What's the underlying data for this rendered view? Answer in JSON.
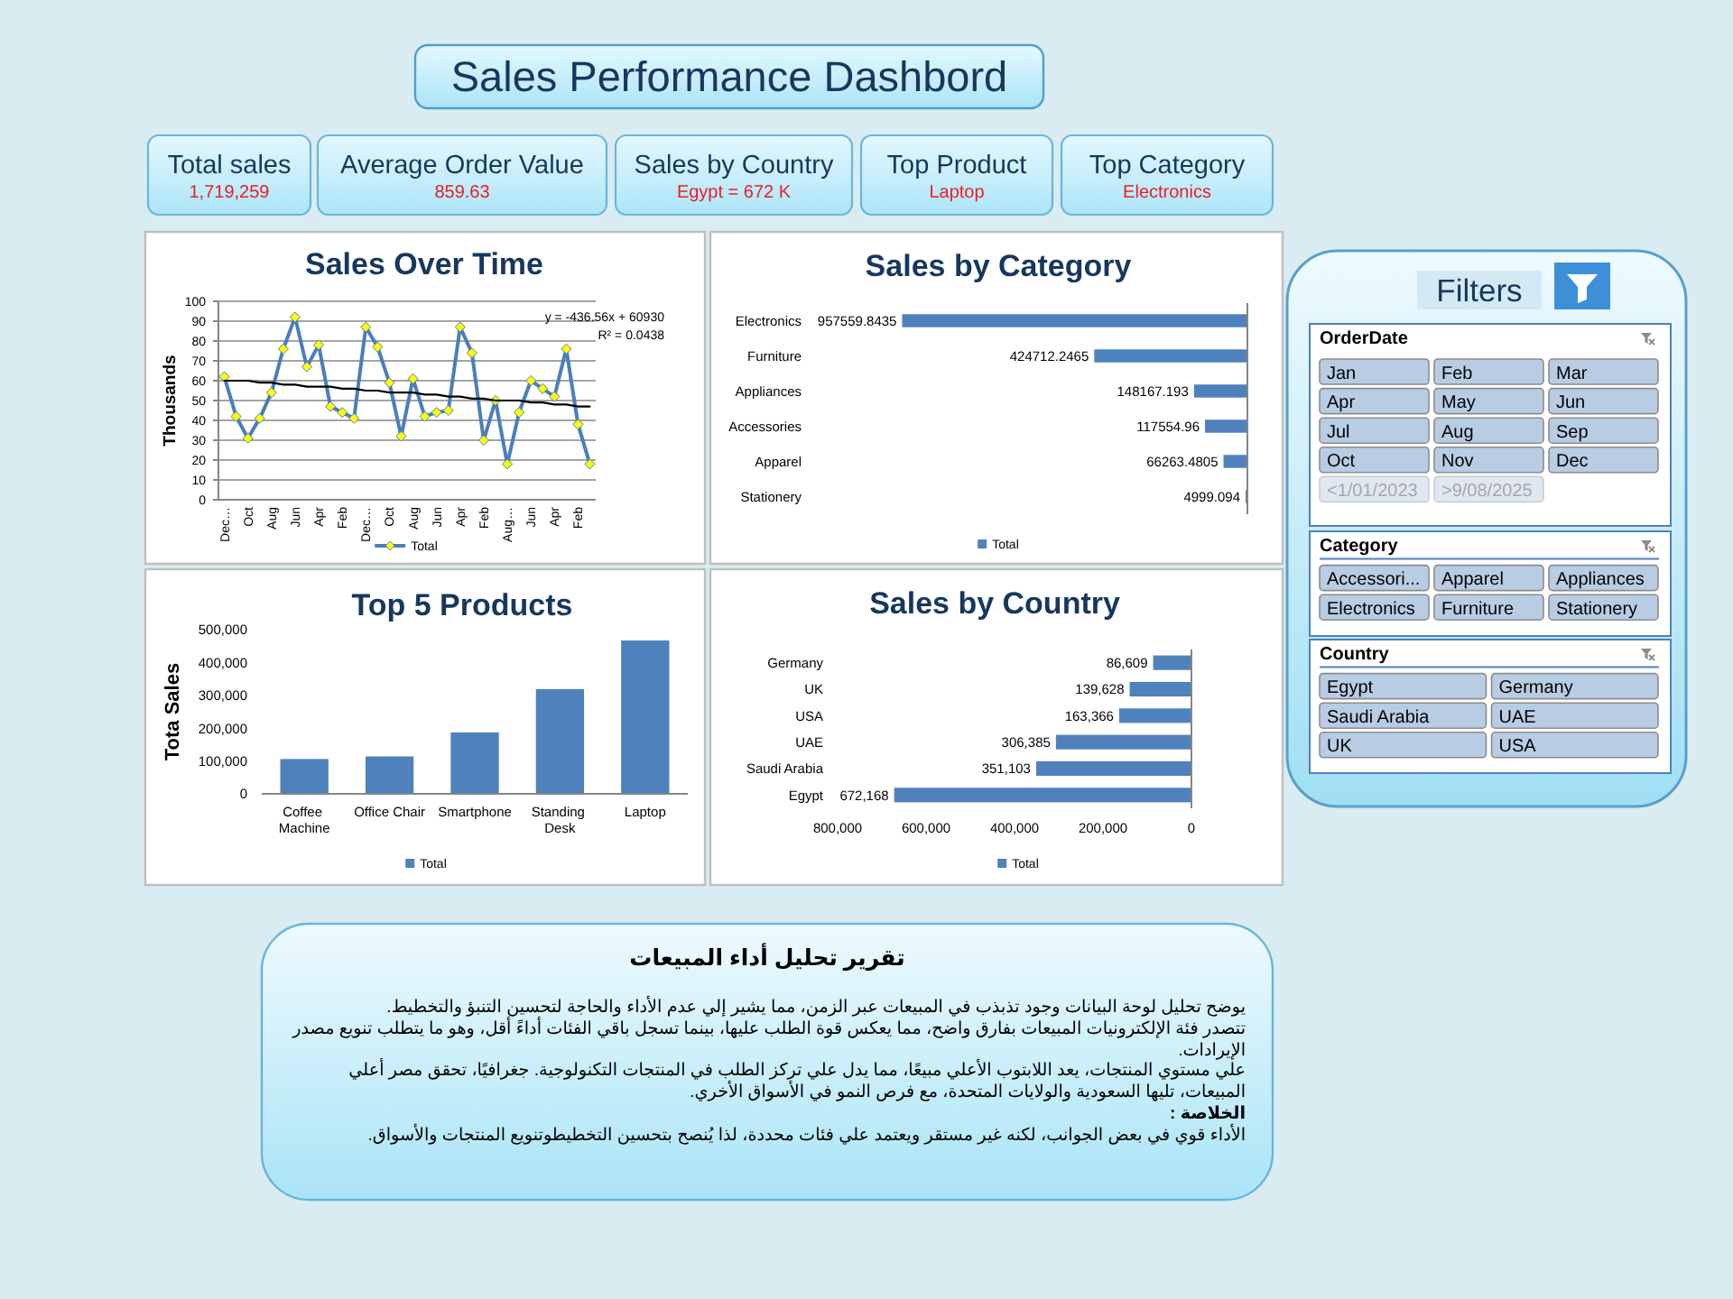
{
  "chart_data": [
    {
      "type": "other",
      "title": "Sales Performance Dashbord"
    },
    {
      "type": "other",
      "title": "Total sales",
      "annotations": [
        "1,719,259"
      ]
    },
    {
      "type": "other",
      "title": "Average Order Value",
      "annotations": [
        "859.63"
      ]
    },
    {
      "type": "other",
      "title": "Sales by Country",
      "annotations": [
        "Egypt = 672 K"
      ]
    },
    {
      "type": "other",
      "title": "Top Product",
      "annotations": [
        "Laptop"
      ]
    },
    {
      "type": "other",
      "title": "Top Category",
      "annotations": [
        "Electronics"
      ]
    },
    {
      "type": "line",
      "title": "Sales Over Time",
      "ylabel": "Thousands",
      "categories": [
        "Dec…",
        null,
        "Oct",
        null,
        "Aug",
        null,
        "Jun",
        null,
        "Apr",
        null,
        "Feb",
        null,
        "Dec…",
        null,
        "Oct",
        null,
        "Aug",
        null,
        "Jun",
        null,
        "Apr",
        null,
        "Feb",
        null,
        "Aug…",
        null,
        "Jun",
        null,
        "Apr",
        null,
        "Feb",
        null
      ],
      "series": [
        {
          "name": "Total",
          "color": "#4a7ebb",
          "values": [
            62,
            42,
            31,
            41,
            54,
            76,
            92,
            67,
            78,
            47,
            44,
            41,
            87,
            77,
            59,
            32,
            61,
            42,
            44,
            45,
            87,
            74,
            30,
            50,
            18,
            44,
            60,
            56,
            52,
            76,
            38,
            18
          ],
          "colors": [
            "#ffff00",
            "#ffff00",
            "#ffff00",
            "#ffff00",
            "#ffff00",
            "#ffff00",
            "#ffff00",
            "#ffff00",
            "#ffff00",
            "#ffff00",
            "#ffff00",
            "#ffff00",
            "#ffff00",
            "#ffff00",
            "#ffff00",
            "#ffff00",
            "#ffff00",
            "#ffff00",
            "#ffff00",
            "#ffff00",
            "#ffff00",
            "#ffff00",
            "#ffff00",
            "#ffff00",
            "#ffff00",
            "#ffff00",
            "#ffff00",
            "#ffff00",
            "#ffff00",
            "#ffff00",
            "#ffff00",
            "#ffff00"
          ]
        },
        {
          "type": "line",
          "color": "#000000",
          "values": [
            60,
            60,
            60,
            59,
            59,
            58,
            58,
            57,
            57,
            57,
            56,
            56,
            55,
            55,
            54,
            54,
            54,
            53,
            53,
            52,
            52,
            51,
            51,
            50,
            50,
            50,
            49,
            49,
            48,
            48,
            47,
            47
          ],
          "marker": "none"
        }
      ],
      "ylim": [
        0,
        100
      ],
      "yticks": [
        0,
        10,
        20,
        30,
        40,
        50,
        60,
        70,
        80,
        90,
        100
      ],
      "grid": "y",
      "legend": "bottom",
      "marker": "diamond",
      "annotations": [
        "y = -436.56x + 60930",
        "R² = 0.0438"
      ]
    },
    {
      "type": "bar",
      "orientation": "horizontal",
      "title": "Sales by Category",
      "categories": [
        "Electronics",
        "Furniture",
        "Appliances",
        "Accessories",
        "Apparel",
        "Stationery"
      ],
      "series": [
        {
          "name": "Total",
          "color": "#4f81bd",
          "values": [
            957559.8435,
            424712.2465,
            148167.193,
            117554.96,
            66263.4805,
            4999.094
          ]
        }
      ],
      "tick_labels": "y",
      "data_labels": true,
      "legend": "bottom"
    },
    {
      "type": "other",
      "title": "Filters"
    },
    {
      "type": "other",
      "title": "OrderDate",
      "categories": [
        "Jan",
        "Feb",
        "Mar",
        "Apr",
        "May",
        "Jun",
        "Jul",
        "Aug",
        "Sep",
        "Oct",
        "Nov",
        "Dec"
      ],
      "annotations": [
        "<1/01/2023",
        ">9/08/2025"
      ]
    },
    {
      "type": "other",
      "title": "Category",
      "categories": [
        "Accessori...",
        "Apparel",
        "Appliances",
        "Electronics",
        "Furniture",
        "Stationery"
      ]
    },
    {
      "type": "other",
      "title": "Country",
      "categories": [
        "Egypt",
        "Germany",
        "Saudi Arabia",
        "UAE",
        "UK",
        "USA"
      ]
    },
    {
      "type": "bar",
      "title": "Top 5 Products",
      "ylabel": "Tota Sales",
      "categories": [
        "Coffee Machine",
        "Office Chair",
        "Smartphone",
        "Standing Desk",
        "Laptop"
      ],
      "series": [
        {
          "name": "Total",
          "color": "#4f81bd",
          "values": [
            106000,
            114000,
            187000,
            319000,
            467000
          ]
        }
      ],
      "ylim": [
        0,
        500000
      ],
      "yticks": [
        0,
        {
          "value": 100000,
          "label": "100,000"
        },
        {
          "value": 200000,
          "label": "200,000"
        },
        {
          "value": 300000,
          "label": "300,000"
        },
        {
          "value": 400000,
          "label": "400,000"
        },
        {
          "value": 500000,
          "label": "500,000"
        }
      ],
      "legend": "bottom"
    },
    {
      "type": "bar",
      "orientation": "horizontal",
      "title": "Sales by Country",
      "categories": [
        "Germany",
        "UK",
        "USA",
        "UAE",
        "Saudi Arabia",
        "Egypt"
      ],
      "series": [
        {
          "name": "Total",
          "color": "#4f81bd",
          "values": [
            86609,
            139628,
            163366,
            306385,
            351103,
            672168
          ],
          "value_labels": [
            "86,609",
            "139,628",
            "163,366",
            "306,385",
            "351,103",
            "672,168"
          ]
        }
      ],
      "xlim": [
        800000,
        0
      ],
      "xticks": [
        {
          "value": 800000,
          "label": "800,000"
        },
        {
          "value": 600000,
          "label": "600,000"
        },
        {
          "value": 400000,
          "label": "400,000"
        },
        {
          "value": 200000,
          "label": "200,000"
        },
        0
      ],
      "legend": "bottom"
    },
    {
      "type": "other",
      "title": "تقرير تحليل أداء المبيعات",
      "annotations": [
        "يوضح تحليل لوحة البيانات وجود تذبذب في المبيعات عبر الزمن، مما يشير إلي عدم الأداء والحاجة لتحسين التنبؤ والتخطيط.",
        "تتصدر فئة الإلكترونيات المبيعات بفارق واضح، مما يعكس قوة الطلب عليها، بينما تسجل باقي الفئات أداءً أقل، وهو ما يتطلب تنويع مصدر الإيرادات.",
        "علي مستوي المنتجات، يعد اللابتوب الأعلي مبيعًا، مما يدل علي تركز الطلب في المنتجات التكنولوجية. جغرافيًا، تحقق مصر أعلي المبيعات، تليها السعودية والولايات المتحدة، مع فرص النمو في الأسواق الأخري.",
        "الخلاصة :",
        "الأداء قوي في بعض الجوانب، لكنه غير مستقر ويعتمد علي فئات محددة، لذا يُنصح بتحسين التخطيطوتنويع المنتجات والأسواق."
      ]
    }
  ]
}
